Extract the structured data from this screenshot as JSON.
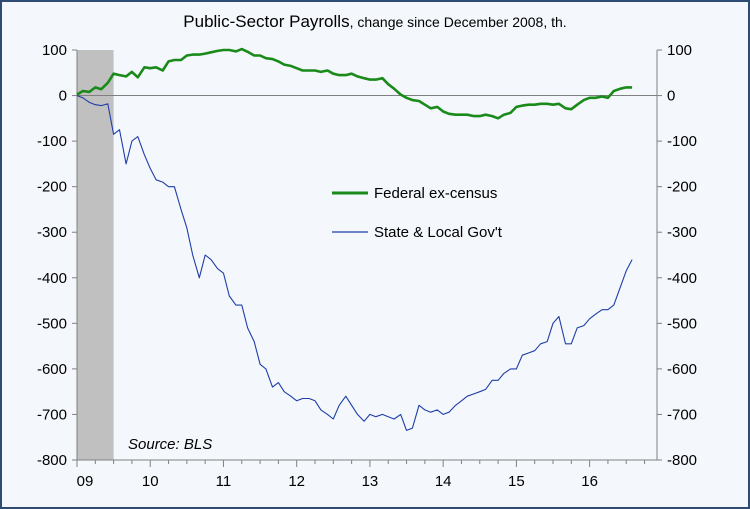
{
  "chart_data": {
    "type": "line",
    "title": "Public-Sector Payrolls",
    "subtitle": ", change since December 2008, th.",
    "source": "Source: BLS",
    "ylim": [
      -800,
      100
    ],
    "xlim": [
      2009.0,
      2016.92
    ],
    "y_ticks": [
      "100",
      "0",
      "-100",
      "-200",
      "-300",
      "-400",
      "-500",
      "-600",
      "-700",
      "-800"
    ],
    "x_ticks": [
      {
        "label": "09",
        "value": 2009.0
      },
      {
        "label": "10",
        "value": 2010.0
      },
      {
        "label": "11",
        "value": 2011.0
      },
      {
        "label": "12",
        "value": 2012.0
      },
      {
        "label": "13",
        "value": 2013.0
      },
      {
        "label": "14",
        "value": 2014.0
      },
      {
        "label": "15",
        "value": 2015.0
      },
      {
        "label": "16",
        "value": 2016.0
      }
    ],
    "recession": {
      "start": 2009.0,
      "end": 2009.5,
      "color": "#c0c0c0"
    },
    "legend_position": "center-right",
    "series": [
      {
        "name": "Federal ex-census",
        "color": "#1a8a1a",
        "x": [
          2009.0,
          2009.08,
          2009.17,
          2009.25,
          2009.33,
          2009.42,
          2009.5,
          2009.58,
          2009.67,
          2009.75,
          2009.83,
          2009.92,
          2010.0,
          2010.08,
          2010.17,
          2010.25,
          2010.33,
          2010.42,
          2010.5,
          2010.58,
          2010.67,
          2010.75,
          2010.83,
          2010.92,
          2011.0,
          2011.08,
          2011.17,
          2011.25,
          2011.33,
          2011.42,
          2011.5,
          2011.58,
          2011.67,
          2011.75,
          2011.83,
          2011.92,
          2012.0,
          2012.08,
          2012.17,
          2012.25,
          2012.33,
          2012.42,
          2012.5,
          2012.58,
          2012.67,
          2012.75,
          2012.83,
          2012.92,
          2013.0,
          2013.08,
          2013.17,
          2013.25,
          2013.33,
          2013.42,
          2013.5,
          2013.58,
          2013.67,
          2013.75,
          2013.83,
          2013.92,
          2014.0,
          2014.08,
          2014.17,
          2014.25,
          2014.33,
          2014.42,
          2014.5,
          2014.58,
          2014.67,
          2014.75,
          2014.83,
          2014.92,
          2015.0,
          2015.08,
          2015.17,
          2015.25,
          2015.33,
          2015.42,
          2015.5,
          2015.58,
          2015.67,
          2015.75,
          2015.83,
          2015.92,
          2016.0,
          2016.08,
          2016.17,
          2016.25,
          2016.33,
          2016.42,
          2016.5,
          2016.58
        ],
        "values": [
          2,
          10,
          8,
          18,
          14,
          28,
          48,
          45,
          42,
          52,
          40,
          62,
          60,
          62,
          55,
          75,
          78,
          78,
          88,
          90,
          90,
          92,
          95,
          98,
          100,
          100,
          97,
          102,
          96,
          88,
          88,
          82,
          80,
          75,
          68,
          65,
          60,
          55,
          55,
          55,
          52,
          55,
          48,
          45,
          45,
          48,
          42,
          38,
          35,
          35,
          38,
          25,
          15,
          2,
          -5,
          -10,
          -12,
          -20,
          -28,
          -25,
          -35,
          -40,
          -42,
          -42,
          -42,
          -45,
          -45,
          -42,
          -45,
          -50,
          -42,
          -38,
          -25,
          -22,
          -20,
          -20,
          -18,
          -18,
          -20,
          -18,
          -28,
          -30,
          -20,
          -10,
          -5,
          -5,
          -2,
          -5,
          10,
          15,
          18,
          18
        ]
      },
      {
        "name": "State & Local Gov't",
        "color": "#1f3ea8",
        "x": [
          2009.0,
          2009.08,
          2009.17,
          2009.25,
          2009.33,
          2009.42,
          2009.5,
          2009.58,
          2009.67,
          2009.75,
          2009.83,
          2009.92,
          2010.0,
          2010.08,
          2010.17,
          2010.25,
          2010.33,
          2010.42,
          2010.5,
          2010.58,
          2010.67,
          2010.75,
          2010.83,
          2010.92,
          2011.0,
          2011.08,
          2011.17,
          2011.25,
          2011.33,
          2011.42,
          2011.5,
          2011.58,
          2011.67,
          2011.75,
          2011.83,
          2011.92,
          2012.0,
          2012.08,
          2012.17,
          2012.25,
          2012.33,
          2012.42,
          2012.5,
          2012.58,
          2012.67,
          2012.75,
          2012.83,
          2012.92,
          2013.0,
          2013.08,
          2013.17,
          2013.25,
          2013.33,
          2013.42,
          2013.5,
          2013.58,
          2013.67,
          2013.75,
          2013.83,
          2013.92,
          2014.0,
          2014.08,
          2014.17,
          2014.25,
          2014.33,
          2014.42,
          2014.5,
          2014.58,
          2014.67,
          2014.75,
          2014.83,
          2014.92,
          2015.0,
          2015.08,
          2015.17,
          2015.25,
          2015.33,
          2015.42,
          2015.5,
          2015.58,
          2015.67,
          2015.75,
          2015.83,
          2015.92,
          2016.0,
          2016.08,
          2016.17,
          2016.25,
          2016.33,
          2016.42,
          2016.5,
          2016.58
        ],
        "values": [
          0,
          -5,
          -15,
          -20,
          -22,
          -18,
          -85,
          -75,
          -150,
          -100,
          -90,
          -130,
          -160,
          -185,
          -190,
          -200,
          -200,
          -250,
          -290,
          -350,
          -400,
          -350,
          -360,
          -380,
          -390,
          -440,
          -460,
          -460,
          -510,
          -540,
          -590,
          -600,
          -640,
          -630,
          -650,
          -660,
          -670,
          -665,
          -665,
          -670,
          -690,
          -700,
          -710,
          -680,
          -660,
          -680,
          -700,
          -715,
          -700,
          -705,
          -700,
          -705,
          -710,
          -700,
          -735,
          -730,
          -680,
          -690,
          -695,
          -690,
          -700,
          -695,
          -680,
          -670,
          -660,
          -655,
          -650,
          -645,
          -625,
          -625,
          -610,
          -600,
          -600,
          -570,
          -565,
          -560,
          -545,
          -540,
          -500,
          -485,
          -545,
          -545,
          -510,
          -505,
          -490,
          -480,
          -470,
          -470,
          -460,
          -420,
          -385,
          -360
        ]
      }
    ]
  }
}
